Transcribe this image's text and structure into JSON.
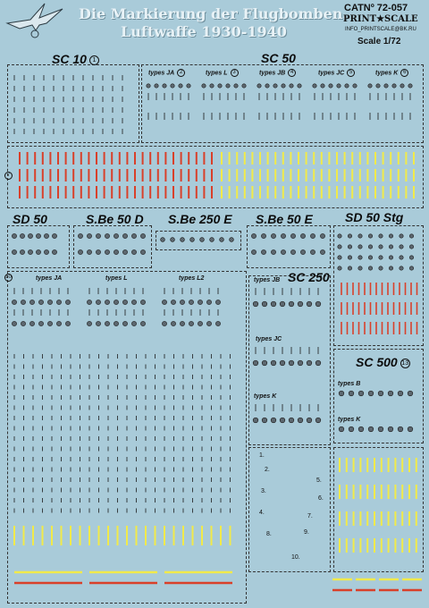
{
  "title": {
    "line1": "Die Markierung der Flugbomben.",
    "line2": "Luftwaffe 1930-1940"
  },
  "catalog": "CATNº 72-057",
  "brand": "PRINT★SCALE",
  "email": "INFO_PRINTSCALE@BK.RU",
  "scale": "Scale 1/72",
  "sections": {
    "sc10": "SC 10",
    "sc10_n": "1",
    "sc50": "SC 50",
    "sd50": "SD 50",
    "sbe50d": "S.Be 50 D",
    "sbe250e": "S.Be 250 E",
    "sbe50e": "S.Be 50 E",
    "sd50stg": "SD 50 Stg",
    "sc250": "SC 250",
    "sc500": "SC 500",
    "sc500_n": "13"
  },
  "sc50_types": [
    {
      "label": "types JA",
      "n": "2"
    },
    {
      "label": "types L",
      "n": "3"
    },
    {
      "label": "types JB",
      "n": "4"
    },
    {
      "label": "types JC",
      "n": "5"
    },
    {
      "label": "types K",
      "n": "6"
    }
  ],
  "stripes_n": "7",
  "bottom_types": {
    "n": "10",
    "ja": "types JA",
    "l": "types L",
    "l2": "types L2",
    "jb": "types JB",
    "jc": "types JC",
    "k": "types K"
  },
  "sc500_types": {
    "b": "types B",
    "k": "types K"
  },
  "inscriptions": [
    "1.",
    "2.",
    "3.",
    "4.",
    "5.",
    "6.",
    "7.",
    "8.",
    "9.",
    "10."
  ],
  "colors": {
    "bg": "#a9cbd9",
    "red": "#d9402a",
    "yellow": "#f1ea4a",
    "ink": "#1b1b1b",
    "grey": "#5d6870"
  }
}
